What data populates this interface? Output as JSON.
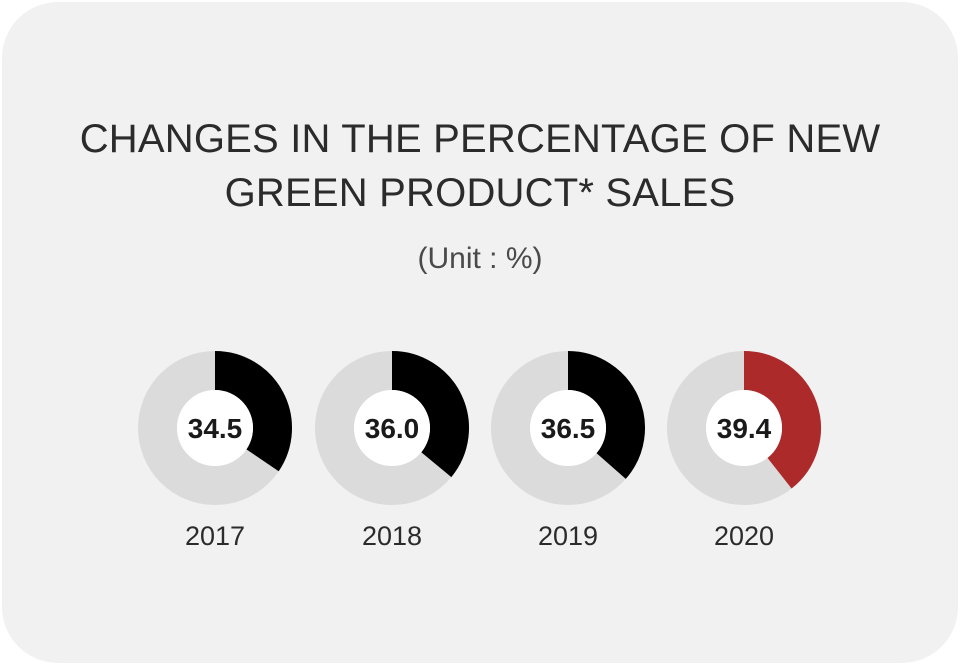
{
  "title_line1": "CHANGES IN THE PERCENTAGE OF NEW",
  "title_line2": "GREEN PRODUCT* SALES",
  "unit_label": "(Unit : %)",
  "colors": {
    "background": "#f1f1f1",
    "track": "#dcdbdb",
    "segment_default": "#000000",
    "segment_highlight": "#ad2a2b"
  },
  "chart_data": {
    "type": "pie",
    "title": "CHANGES IN THE PERCENTAGE OF NEW GREEN PRODUCT* SALES",
    "unit": "%",
    "categories": [
      "2017",
      "2018",
      "2019",
      "2020"
    ],
    "values": [
      34.5,
      36.0,
      36.5,
      39.4
    ],
    "value_labels": [
      "34.5",
      "36.0",
      "36.5",
      "39.4"
    ],
    "highlighted_category": "2020"
  }
}
